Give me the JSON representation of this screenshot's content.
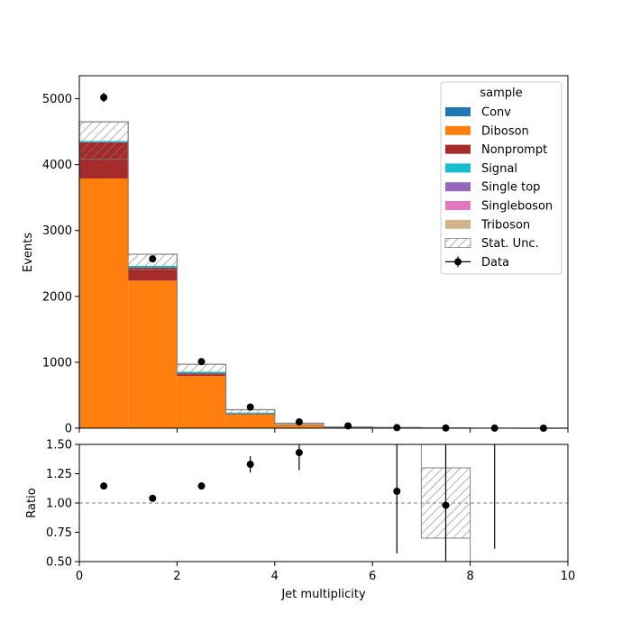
{
  "chart_data": {
    "type": "bar",
    "stacked": true,
    "x_bin_edges": [
      0,
      1,
      2,
      3,
      4,
      5,
      6,
      7,
      8,
      9,
      10
    ],
    "xlabel": "Jet multiplicity",
    "main_panel": {
      "ylabel": "Events",
      "ylim": [
        0,
        5350
      ],
      "yticks": [
        0,
        1000,
        2000,
        3000,
        4000,
        5000
      ],
      "xticks": [
        0,
        2,
        4,
        6,
        8,
        10
      ],
      "series": [
        {
          "name": "Conv",
          "color": "#1f77b4",
          "values": [
            0,
            0,
            0,
            0,
            0,
            0,
            0,
            0,
            0,
            0
          ]
        },
        {
          "name": "Diboson",
          "color": "#ff7f0e",
          "values": [
            3790,
            2240,
            790,
            210,
            50,
            12,
            5,
            2,
            1,
            0
          ]
        },
        {
          "name": "Nonprompt",
          "color": "#a52a2a",
          "values": [
            550,
            200,
            45,
            12,
            4,
            1,
            0.5,
            0,
            0,
            0
          ]
        },
        {
          "name": "Signal",
          "color": "#17becf",
          "values": [
            20,
            25,
            22,
            15,
            5,
            1,
            0.5,
            0,
            0,
            0
          ]
        },
        {
          "name": "Single top",
          "color": "#9467bd",
          "values": [
            0,
            0,
            0,
            0,
            0,
            0,
            0,
            0,
            0,
            0
          ]
        },
        {
          "name": "Singleboson",
          "color": "#e377c2",
          "values": [
            0,
            0,
            0,
            0,
            0,
            0,
            0,
            0,
            0,
            0
          ]
        },
        {
          "name": "Triboson",
          "color": "#d2b48c",
          "values": [
            0,
            0,
            0,
            0,
            0,
            0,
            0,
            0,
            0,
            0
          ]
        }
      ],
      "total_mc": [
        4650,
        2640,
        970,
        280,
        75,
        20,
        10,
        3,
        1,
        0
      ],
      "stat_unc_band": {
        "low": [
          4080,
          2410,
          820,
          210,
          55,
          12,
          4,
          1,
          0,
          0
        ],
        "high": [
          4650,
          2640,
          970,
          280,
          75,
          20,
          10,
          3,
          1,
          0
        ]
      },
      "data": {
        "name": "Data",
        "x": [
          0.5,
          1.5,
          2.5,
          3.5,
          4.5,
          5.5,
          6.5,
          7.5,
          8.5,
          9.5
        ],
        "y": [
          5020,
          2570,
          1010,
          320,
          95,
          35,
          8,
          3,
          1,
          0
        ],
        "yerr": [
          70,
          50,
          32,
          18,
          10,
          6,
          3,
          2,
          1,
          0
        ]
      }
    },
    "ratio_panel": {
      "ylabel": "Ratio",
      "ylim": [
        0.5,
        1.5
      ],
      "yticks": [
        0.5,
        0.75,
        1.0,
        1.25,
        1.5
      ],
      "ytick_labels": [
        "0.50",
        "0.75",
        "1.00",
        "1.25",
        "1.50"
      ],
      "xticks": [
        0,
        2,
        4,
        6,
        8,
        10
      ],
      "xtick_labels": [
        "0",
        "2",
        "4",
        "6",
        "8",
        "10"
      ],
      "reference_line": 1.0,
      "points": {
        "x": [
          0.5,
          1.5,
          2.5,
          3.5,
          4.5,
          6.5,
          7.5
        ],
        "y": [
          1.145,
          1.04,
          1.145,
          1.33,
          1.43,
          1.1,
          0.98
        ],
        "err_low": [
          0.02,
          0.02,
          0.03,
          0.07,
          0.15,
          0.53,
          0.5
        ],
        "err_high": [
          0.02,
          0.02,
          0.03,
          0.07,
          0.1,
          0.5,
          0.6
        ]
      },
      "error_only_bins": [
        {
          "x": 8.5,
          "low": 0.61,
          "high": 1.5
        }
      ],
      "unc_band": [
        {
          "x0": 7,
          "x1": 8,
          "low": 0.7,
          "high": 1.3
        }
      ]
    },
    "legend": {
      "title": "sample",
      "placement": "top-right",
      "entries": [
        {
          "label": "Conv",
          "type": "patch",
          "color": "#1f77b4"
        },
        {
          "label": "Diboson",
          "type": "patch",
          "color": "#ff7f0e"
        },
        {
          "label": "Nonprompt",
          "type": "patch",
          "color": "#a52a2a"
        },
        {
          "label": "Signal",
          "type": "patch",
          "color": "#17becf"
        },
        {
          "label": "Single top",
          "type": "patch",
          "color": "#9467bd"
        },
        {
          "label": "Singleboson",
          "type": "patch",
          "color": "#e377c2"
        },
        {
          "label": "Triboson",
          "type": "patch",
          "color": "#d2b48c"
        },
        {
          "label": "Stat. Unc.",
          "type": "hatch",
          "color": "#808080"
        },
        {
          "label": "Data",
          "type": "errorbar",
          "color": "#000000"
        }
      ]
    }
  }
}
